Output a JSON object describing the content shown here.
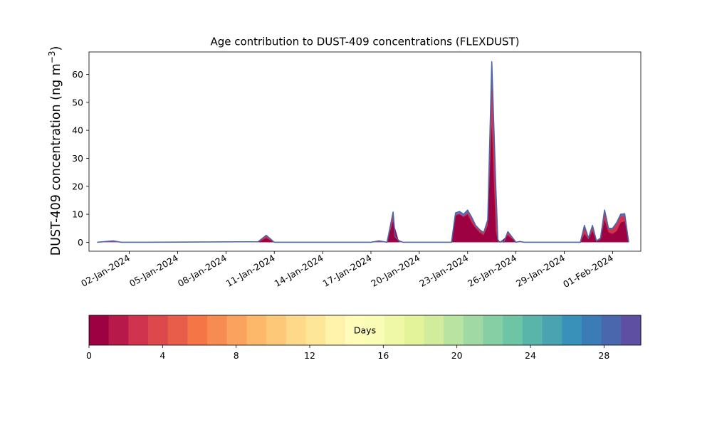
{
  "chart_data": {
    "type": "area",
    "title": "Age contribution to DUST-409 concentrations (FLEXDUST)",
    "ylabel": "DUST-409 concentration (ng m⁻³)",
    "ylabel_main": "DUST-409 concentration (ng m",
    "ylabel_exp": "−3",
    "ylabel_close": ")",
    "xlabel": "",
    "xlim": [
      "2023-12-30T12:00",
      "2024-02-02T18:00"
    ],
    "ylim": [
      -3.2,
      68
    ],
    "y_ticks": [
      0,
      10,
      20,
      30,
      40,
      50,
      60
    ],
    "x_tick_labels": [
      "02-Jan-2024",
      "05-Jan-2024",
      "08-Jan-2024",
      "11-Jan-2024",
      "14-Jan-2024",
      "17-Jan-2024",
      "20-Jan-2024",
      "23-Jan-2024",
      "26-Jan-2024",
      "29-Jan-2024",
      "01-Feb-2024"
    ],
    "x_tick_dates": [
      "2024-01-02",
      "2024-01-05",
      "2024-01-08",
      "2024-01-11",
      "2024-01-14",
      "2024-01-17",
      "2024-01-20",
      "2024-01-23",
      "2024-01-26",
      "2024-01-29",
      "2024-02-01"
    ],
    "series_total": {
      "x": [
        "2023-12-31T00:00",
        "2024-01-01T00:00",
        "2024-01-01T12:00",
        "2024-01-02T00:00",
        "2024-01-03T00:00",
        "2024-01-10T00:00",
        "2024-01-10T12:00",
        "2024-01-11T00:00",
        "2024-01-17T00:00",
        "2024-01-17T12:00",
        "2024-01-18T00:00",
        "2024-01-18T09:00",
        "2024-01-18T12:00",
        "2024-01-18T18:00",
        "2024-01-19T00:00",
        "2024-01-22T00:00",
        "2024-01-22T06:00",
        "2024-01-22T12:00",
        "2024-01-22T18:00",
        "2024-01-23T00:00",
        "2024-01-23T06:00",
        "2024-01-23T12:00",
        "2024-01-23T18:00",
        "2024-01-24T00:00",
        "2024-01-24T06:00",
        "2024-01-24T12:00",
        "2024-01-24T18:00",
        "2024-01-24T21:00",
        "2024-01-25T00:00",
        "2024-01-25T03:00",
        "2024-01-25T06:00",
        "2024-01-25T12:00",
        "2024-01-26T00:00",
        "2024-01-26T06:00",
        "2024-01-26T12:00",
        "2024-01-27T00:00",
        "2024-01-30T00:00",
        "2024-01-30T06:00",
        "2024-01-30T12:00",
        "2024-01-30T18:00",
        "2024-01-31T00:00",
        "2024-01-31T06:00",
        "2024-01-31T12:00",
        "2024-01-31T18:00",
        "2024-02-01T00:00",
        "2024-02-01T06:00",
        "2024-02-01T12:00",
        "2024-02-01T18:00",
        "2024-02-02T00:00"
      ],
      "y": [
        0,
        0.5,
        0,
        0,
        0,
        0.2,
        2.5,
        0,
        0,
        0.5,
        0,
        10.8,
        2,
        0.5,
        0,
        0,
        10.5,
        11,
        10,
        11.5,
        9,
        6,
        4.5,
        3.5,
        8,
        64.5,
        20,
        1,
        0,
        0.5,
        0,
        3.8,
        0,
        0.3,
        0,
        0,
        0,
        6,
        1.5,
        6,
        0.5,
        1.5,
        11.5,
        5,
        5,
        7,
        10,
        10.2,
        0
      ]
    },
    "series_young": {
      "x": [
        "2023-12-31T00:00",
        "2024-01-10T00:00",
        "2024-01-10T12:00",
        "2024-01-11T00:00",
        "2024-01-18T00:00",
        "2024-01-18T09:00",
        "2024-01-18T18:00",
        "2024-01-22T00:00",
        "2024-01-22T06:00",
        "2024-01-22T12:00",
        "2024-01-22T18:00",
        "2024-01-23T00:00",
        "2024-01-23T06:00",
        "2024-01-23T12:00",
        "2024-01-23T18:00",
        "2024-01-24T00:00",
        "2024-01-24T06:00",
        "2024-01-24T12:00",
        "2024-01-24T18:00",
        "2024-01-24T21:00",
        "2024-01-25T00:00",
        "2024-01-25T12:00",
        "2024-01-26T00:00",
        "2024-01-30T00:00",
        "2024-01-30T06:00",
        "2024-01-30T12:00",
        "2024-01-30T18:00",
        "2024-01-31T00:00",
        "2024-01-31T06:00",
        "2024-01-31T12:00",
        "2024-01-31T18:00",
        "2024-02-01T00:00",
        "2024-02-01T06:00",
        "2024-02-01T12:00",
        "2024-02-01T18:00",
        "2024-02-02T00:00"
      ],
      "y": [
        0,
        0,
        1.5,
        0,
        0,
        7.5,
        0,
        0,
        9.5,
        10,
        9,
        10,
        7,
        5,
        3.5,
        2.5,
        6,
        42,
        4,
        0.5,
        0,
        2.5,
        0,
        0,
        3,
        1,
        4,
        0.3,
        1,
        8,
        3.5,
        3,
        4,
        7,
        7.5,
        0
      ]
    },
    "colorbar": {
      "label": "Days",
      "min": 0,
      "max": 30,
      "ticks": [
        0,
        4,
        8,
        12,
        16,
        20,
        24,
        28
      ],
      "colors": [
        "#9e0142",
        "#b7194a",
        "#d0334d",
        "#dc484c",
        "#e85d4a",
        "#f57547",
        "#f78c52",
        "#fba35e",
        "#fdb86a",
        "#fdc978",
        "#fed989",
        "#fee698",
        "#fff2aa",
        "#fffbb9",
        "#f8fcb4",
        "#eff8a6",
        "#e3f399",
        "#d0ec9c",
        "#b9e3a0",
        "#a0d9a3",
        "#86cfa5",
        "#6dc5a5",
        "#59b4aa",
        "#4aa3b1",
        "#3990b9",
        "#3b7cb6",
        "#4a67ad",
        "#5e4fa2"
      ]
    },
    "colors": {
      "total_line": "#4a67ad",
      "total_fill": "#5e72b8",
      "young_fill": "#9e0142",
      "mid_fill": "#d0334d"
    },
    "grid": false,
    "legend": "none"
  }
}
